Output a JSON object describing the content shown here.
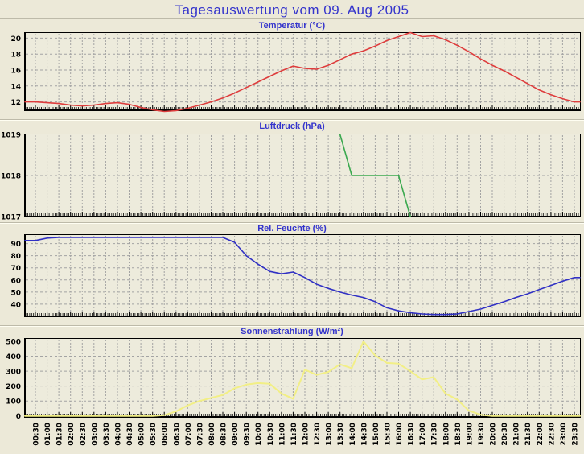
{
  "page": {
    "title": "Tagesauswertung vom 09. Aug 2005",
    "background": "#ECE9D8",
    "plot_background": "#EDEBDC",
    "heading_color": "#3434CC",
    "grid_color": "#A3A3A3",
    "axis_color": "#000000"
  },
  "x_axis": {
    "labels": [
      "00:30",
      "01:00",
      "01:30",
      "02:00",
      "02:30",
      "03:00",
      "03:30",
      "04:00",
      "04:30",
      "05:00",
      "05:30",
      "06:00",
      "06:30",
      "07:00",
      "07:30",
      "08:00",
      "08:30",
      "09:00",
      "09:30",
      "10:00",
      "10:30",
      "11:00",
      "11:30",
      "12:00",
      "12:30",
      "13:00",
      "13:30",
      "14:00",
      "14:30",
      "15:00",
      "15:30",
      "16:00",
      "16:30",
      "17:00",
      "17:30",
      "18:00",
      "18:30",
      "19:00",
      "19:30",
      "20:00",
      "20:30",
      "21:00",
      "21:30",
      "22:00",
      "22:30",
      "23:00",
      "23:30"
    ]
  },
  "chart_data": [
    {
      "type": "line",
      "title": "Temperatur (°C)",
      "color": "#DE3C3C",
      "ylim": [
        10.95,
        20.65
      ],
      "yticks": [
        12,
        14,
        16,
        18,
        20
      ],
      "grid": true,
      "legend": "none",
      "values": [
        12.0,
        11.9,
        11.8,
        11.6,
        11.5,
        11.6,
        11.8,
        11.9,
        11.7,
        11.3,
        11.0,
        10.8,
        10.9,
        11.2,
        11.6,
        12.0,
        12.5,
        13.1,
        13.8,
        14.5,
        15.2,
        15.9,
        16.5,
        16.2,
        16.1,
        16.6,
        17.3,
        18.0,
        18.4,
        19.0,
        19.7,
        20.2,
        20.7,
        20.2,
        20.3,
        19.8,
        19.1,
        18.3,
        17.4,
        16.6,
        15.9,
        15.1,
        14.3,
        13.5,
        12.9,
        12.4,
        12.0
      ]
    },
    {
      "type": "line",
      "title": "Luftdruck (hPa)",
      "color": "#3BA94F",
      "ylim": [
        1017,
        1019
      ],
      "yticks": [
        1017,
        1018,
        1019
      ],
      "grid": true,
      "legend": "none",
      "values": [
        null,
        null,
        null,
        null,
        null,
        null,
        null,
        null,
        null,
        null,
        null,
        null,
        null,
        null,
        null,
        null,
        null,
        null,
        null,
        null,
        null,
        null,
        null,
        null,
        null,
        null,
        1019,
        1018,
        1018,
        1018,
        1018,
        1018,
        1017,
        null,
        null,
        null,
        null,
        null,
        null,
        null,
        null,
        null,
        null,
        null,
        null,
        null,
        null
      ]
    },
    {
      "type": "line",
      "title": "Rel. Feuchte (%)",
      "color": "#3030C4",
      "ylim": [
        30,
        97
      ],
      "yticks": [
        40,
        50,
        60,
        70,
        80,
        90
      ],
      "grid": true,
      "legend": "none",
      "values": [
        92.5,
        94.5,
        95,
        95,
        95,
        95,
        95,
        95,
        95,
        95,
        95,
        95,
        95,
        95,
        95,
        95,
        95,
        91,
        80,
        73,
        67,
        65,
        66.5,
        62,
        56.5,
        53,
        50,
        47.5,
        45.5,
        42,
        37,
        34.5,
        33,
        32,
        31.5,
        31.5,
        32,
        34,
        36,
        39,
        42,
        45.5,
        48.5,
        52,
        55.5,
        59,
        62
      ]
    },
    {
      "type": "line",
      "title": "Sonnenstrahlung (W/m²)",
      "color": "#F2EF85",
      "ylim": [
        -7,
        516
      ],
      "yticks": [
        0,
        100,
        200,
        300,
        400,
        500
      ],
      "grid": true,
      "legend": "none",
      "values": [
        0,
        0,
        0,
        0,
        0,
        0,
        0,
        0,
        0,
        0,
        0,
        5,
        30,
        70,
        100,
        120,
        140,
        185,
        210,
        220,
        215,
        150,
        115,
        310,
        275,
        295,
        345,
        320,
        500,
        405,
        355,
        350,
        300,
        245,
        260,
        150,
        110,
        35,
        8,
        0,
        0,
        0,
        0,
        0,
        0,
        0,
        0
      ]
    }
  ]
}
